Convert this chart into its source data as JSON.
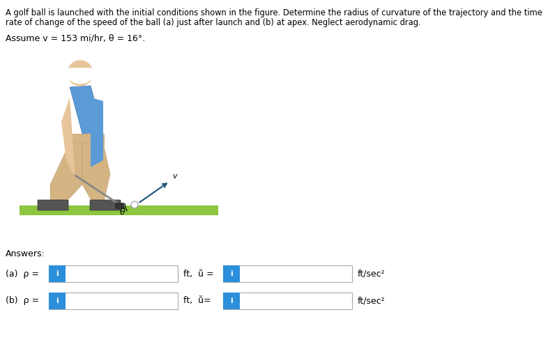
{
  "title_line1": "A golf ball is launched with the initial conditions shown in the figure. Determine the radius of curvature of the trajectory and the time",
  "title_line2": "rate of change of the speed of the ball (a) just after launch and (b) at apex. Neglect aerodynamic drag.",
  "assume_text": "Assume v = 153 mi/hr, θ = 16°.",
  "answers_label": "Answers:",
  "row_a_label": "(a)  ρ =",
  "row_b_label": "(b)  ρ =",
  "ft_label_a": "ft,  ṻ =",
  "ft_label_b": "ft,  ṻ=",
  "ftsec2_label": "ft/sec²",
  "input_box_color": "#ffffff",
  "input_box_border": "#aaaaaa",
  "icon_color": "#2b8fdb",
  "icon_text": "i",
  "icon_text_color": "#ffffff",
  "background_color": "#ffffff",
  "text_color": "#000000",
  "font_size_title": 8.5,
  "font_size_body": 9.5,
  "skin_color": "#e8c49a",
  "shirt_color": "#5b9bd5",
  "pants_color": "#d4b483",
  "shoe_color": "#555555",
  "ground_color": "#8dc63f",
  "club_color": "#888888",
  "arrow_color": "#2e8b57"
}
